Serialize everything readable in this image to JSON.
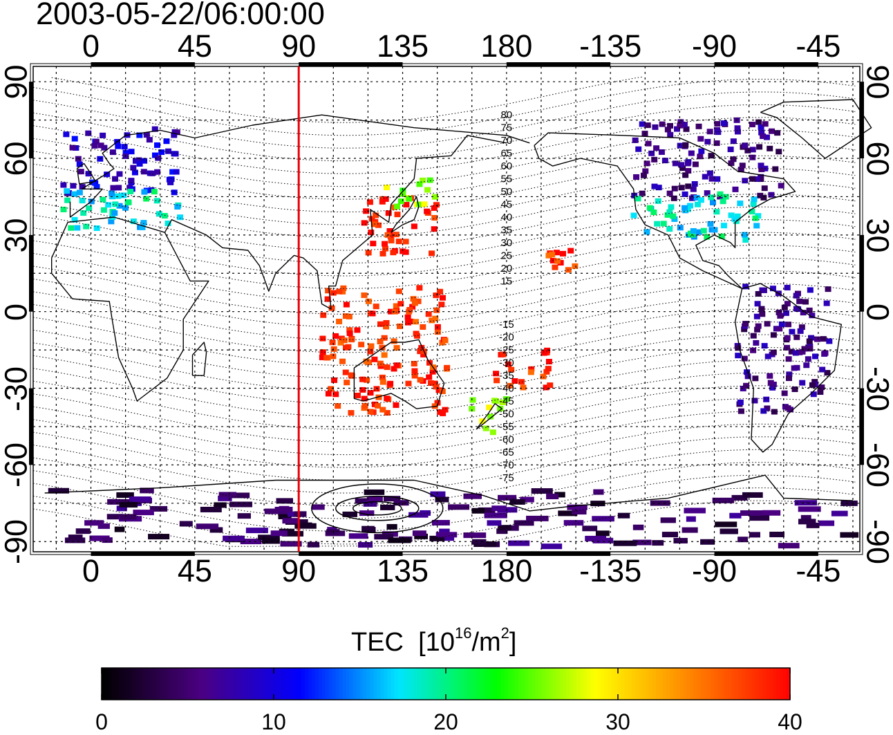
{
  "title": "2003-05-22/06:00:00",
  "map": {
    "x_ticks": [
      "0",
      "45",
      "90",
      "135",
      "180",
      "-135",
      "-90",
      "-45"
    ],
    "y_ticks": [
      "90",
      "60",
      "30",
      "0",
      "-30",
      "-60",
      "-90"
    ],
    "x_tick_lons": [
      0,
      45,
      90,
      135,
      180,
      225,
      270,
      315
    ],
    "y_tick_lats": [
      90,
      60,
      30,
      0,
      -30,
      -60,
      -90
    ],
    "lon_range": [
      -25,
      333
    ],
    "lat_range": [
      -94,
      96
    ],
    "grid": true,
    "marker_line_lon": 90,
    "marker_line_color": "#e8000b",
    "contour_labels_north": [
      "80",
      "75",
      "70",
      "65",
      "60",
      "55",
      "50",
      "45",
      "40",
      "35",
      "30",
      "25",
      "20",
      "15"
    ],
    "contour_labels_south": [
      "-15",
      "-20",
      "-25",
      "-30",
      "-35",
      "-40",
      "-45",
      "-50",
      "-55",
      "-60",
      "-65",
      "-70",
      "-75"
    ],
    "tec_clusters": [
      {
        "region": "Europe",
        "lon": [
          -12,
          40
        ],
        "lat": [
          46,
          72
        ],
        "tec": 9
      },
      {
        "region": "Europe south",
        "lon": [
          -12,
          40
        ],
        "lat": [
          32,
          48
        ],
        "tec": 18
      },
      {
        "region": "Japan-China",
        "lon": [
          118,
          150
        ],
        "lat": [
          22,
          45
        ],
        "tec": 39
      },
      {
        "region": "NE Asia",
        "lon": [
          128,
          150
        ],
        "lat": [
          40,
          52
        ],
        "tec": 26
      },
      {
        "region": "Indonesia-Australia",
        "lon": [
          100,
          155
        ],
        "lat": [
          -40,
          10
        ],
        "tec": 38
      },
      {
        "region": "New Zealand",
        "lon": [
          165,
          180
        ],
        "lat": [
          -48,
          -34
        ],
        "tec": 26
      },
      {
        "region": "Pacific islands",
        "lon": [
          175,
          200
        ],
        "lat": [
          -30,
          -15
        ],
        "tec": 38
      },
      {
        "region": "Hawaii",
        "lon": [
          198,
          210
        ],
        "lat": [
          16,
          24
        ],
        "tec": 38
      },
      {
        "region": "North America north",
        "lon": [
          235,
          300
        ],
        "lat": [
          44,
          75
        ],
        "tec": 6
      },
      {
        "region": "North America south",
        "lon": [
          235,
          290
        ],
        "lat": [
          28,
          46
        ],
        "tec": 18
      },
      {
        "region": "South America",
        "lon": [
          280,
          320
        ],
        "lat": [
          -40,
          10
        ],
        "tec": 6
      },
      {
        "region": "Antarctica",
        "lon": [
          -20,
          330
        ],
        "lat": [
          -92,
          -70
        ],
        "tec": 4
      }
    ]
  },
  "colorbar": {
    "label": "TEC",
    "unit_prefix": "[10",
    "unit_exp": "16",
    "unit_mid": "/m",
    "unit_exp2": "2",
    "unit_suffix": "]",
    "ticks": [
      "0",
      "10",
      "20",
      "30",
      "40"
    ],
    "tick_values": [
      0,
      10,
      20,
      30,
      40
    ],
    "min": 0,
    "max": 40,
    "colors": [
      "#000000",
      "#4b0082",
      "#0000ff",
      "#00e5ff",
      "#00ff00",
      "#ffff00",
      "#ff8000",
      "#ff0000"
    ]
  }
}
